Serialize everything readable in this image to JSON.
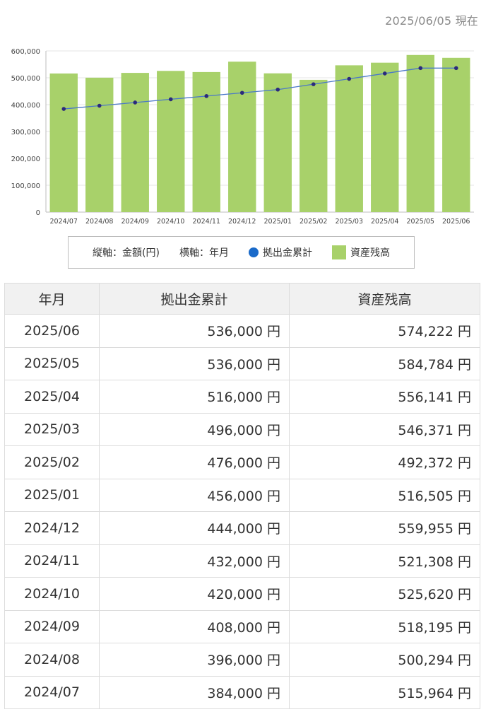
{
  "header": {
    "as_of": "2025/06/05 現在"
  },
  "legend": {
    "vertical_axis": "縦軸：金額(円)",
    "horizontal_axis": "横軸：年月",
    "series_line": "拠出金累計",
    "series_bar": "資産残高"
  },
  "colors": {
    "bar": "#a8d16a",
    "line": "#4a78c8",
    "marker": "#2b2a7c",
    "legend_dot": "#1a6ac9"
  },
  "chart_data": {
    "type": "bar",
    "categories": [
      "2024/07",
      "2024/08",
      "2024/09",
      "2024/10",
      "2024/11",
      "2024/12",
      "2025/01",
      "2025/02",
      "2025/03",
      "2025/04",
      "2025/05",
      "2025/06"
    ],
    "series": [
      {
        "name": "資産残高",
        "type": "bar",
        "values": [
          515964,
          500294,
          518195,
          525620,
          521308,
          559955,
          516505,
          492372,
          546371,
          556141,
          584784,
          574222
        ]
      },
      {
        "name": "拠出金累計",
        "type": "line",
        "values": [
          384000,
          396000,
          408000,
          420000,
          432000,
          444000,
          456000,
          476000,
          496000,
          516000,
          536000,
          536000
        ]
      }
    ],
    "ylim": [
      0,
      600000
    ],
    "yticks": [
      "0",
      "100,000",
      "200,000",
      "300,000",
      "400,000",
      "500,000",
      "600,000"
    ],
    "grid": true
  },
  "table": {
    "headers": [
      "年月",
      "拠出金累計",
      "資産残高"
    ],
    "rows": [
      {
        "month": "2025/06",
        "contrib": "536,000 円",
        "balance": "574,222 円"
      },
      {
        "month": "2025/05",
        "contrib": "536,000 円",
        "balance": "584,784 円"
      },
      {
        "month": "2025/04",
        "contrib": "516,000 円",
        "balance": "556,141 円"
      },
      {
        "month": "2025/03",
        "contrib": "496,000 円",
        "balance": "546,371 円"
      },
      {
        "month": "2025/02",
        "contrib": "476,000 円",
        "balance": "492,372 円"
      },
      {
        "month": "2025/01",
        "contrib": "456,000 円",
        "balance": "516,505 円"
      },
      {
        "month": "2024/12",
        "contrib": "444,000 円",
        "balance": "559,955 円"
      },
      {
        "month": "2024/11",
        "contrib": "432,000 円",
        "balance": "521,308 円"
      },
      {
        "month": "2024/10",
        "contrib": "420,000 円",
        "balance": "525,620 円"
      },
      {
        "month": "2024/09",
        "contrib": "408,000 円",
        "balance": "518,195 円"
      },
      {
        "month": "2024/08",
        "contrib": "396,000 円",
        "balance": "500,294 円"
      },
      {
        "month": "2024/07",
        "contrib": "384,000 円",
        "balance": "515,964 円"
      }
    ]
  }
}
